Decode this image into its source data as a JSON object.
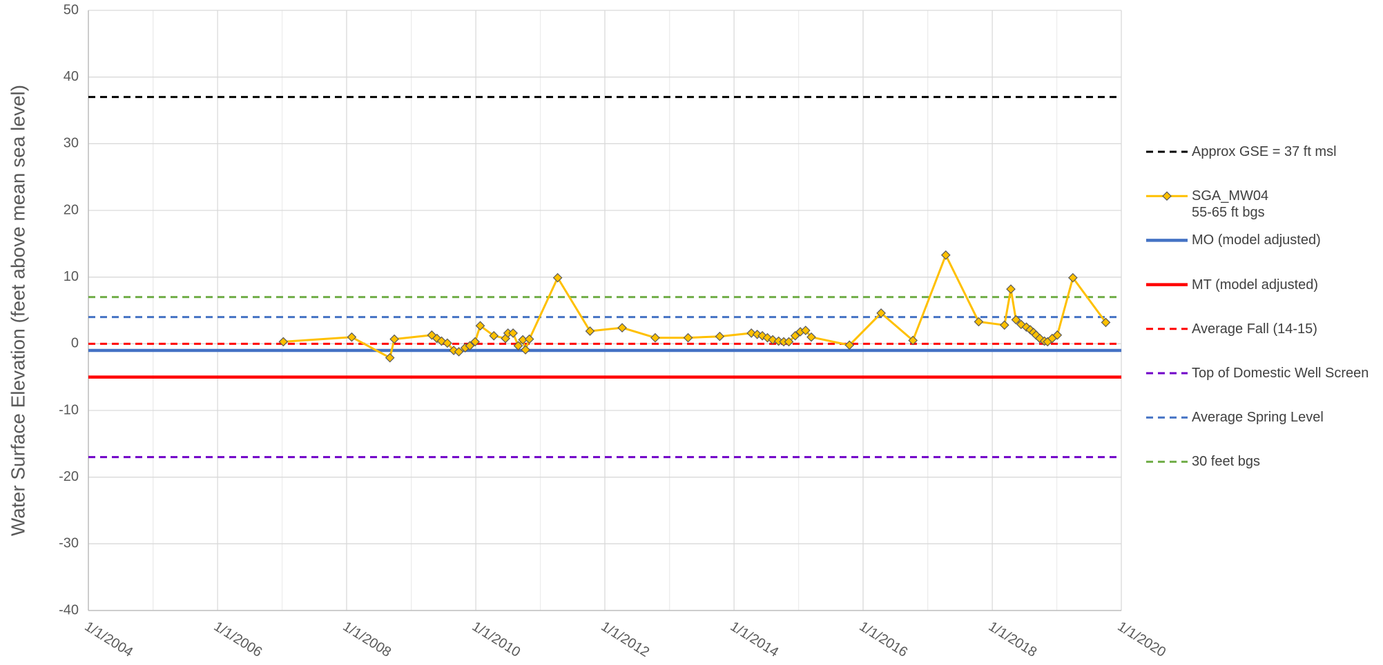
{
  "chart_data": {
    "type": "line",
    "y_label": "Water Surface Elevation (feet above mean sea level)",
    "xlim": [
      "2004-01-01",
      "2020-01-01"
    ],
    "xticks": [
      {
        "value": "2004-01-01",
        "label": "1/1/2004"
      },
      {
        "value": "2006-01-01",
        "label": "1/1/2006"
      },
      {
        "value": "2008-01-01",
        "label": "1/1/2008"
      },
      {
        "value": "2010-01-01",
        "label": "1/1/2010"
      },
      {
        "value": "2012-01-01",
        "label": "1/1/2012"
      },
      {
        "value": "2014-01-01",
        "label": "1/1/2014"
      },
      {
        "value": "2016-01-01",
        "label": "1/1/2016"
      },
      {
        "value": "2018-01-01",
        "label": "1/1/2018"
      },
      {
        "value": "2020-01-01",
        "label": "1/1/2020"
      }
    ],
    "xminorticks": [
      "2005-01-01",
      "2007-01-01",
      "2009-01-01",
      "2011-01-01",
      "2013-01-01",
      "2015-01-01",
      "2017-01-01",
      "2019-01-01"
    ],
    "ylim": [
      -40,
      50
    ],
    "yticks": [
      -40,
      -30,
      -20,
      -10,
      0,
      10,
      20,
      30,
      40,
      50
    ],
    "grid": true,
    "legend": "right",
    "x": [
      "2007-01-08",
      "2008-01-30",
      "2008-09-02",
      "2008-09-27",
      "2009-04-27",
      "2009-05-26",
      "2009-06-21",
      "2009-07-24",
      "2009-08-29",
      "2009-09-27",
      "2009-11-02",
      "2009-11-28",
      "2009-12-28",
      "2010-01-26",
      "2010-04-13",
      "2010-06-18",
      "2010-07-02",
      "2010-07-31",
      "2010-08-29",
      "2010-09-24",
      "2010-10-09",
      "2010-10-31",
      "2011-04-09",
      "2011-10-09",
      "2012-04-08",
      "2012-10-12",
      "2013-04-16",
      "2013-10-12",
      "2014-04-09",
      "2014-05-12",
      "2014-06-10",
      "2014-07-09",
      "2014-08-08",
      "2014-09-10",
      "2014-10-09",
      "2014-11-07",
      "2014-12-13",
      "2015-01-11",
      "2015-02-10",
      "2015-03-14",
      "2015-10-16",
      "2016-04-12",
      "2016-10-09",
      "2017-04-13",
      "2017-10-16",
      "2018-03-11",
      "2018-04-16",
      "2018-05-15",
      "2018-06-13",
      "2018-07-13",
      "2018-08-04",
      "2018-08-22",
      "2018-09-06",
      "2018-09-27",
      "2018-10-23",
      "2018-11-10",
      "2018-12-06",
      "2019-01-04",
      "2019-04-02",
      "2019-10-05"
    ],
    "series": [
      {
        "name": "Approx GSE = 37 ft msl",
        "color": "#000000",
        "dashed": true,
        "value": 37
      },
      {
        "name": "SGA_MW04\n 55-65 ft bgs",
        "color": "#ffc000",
        "marker": "diamond",
        "values": [
          0.3,
          1.0,
          -2.1,
          0.7,
          1.3,
          0.8,
          0.4,
          0.1,
          -1.0,
          -1.2,
          -0.6,
          -0.3,
          0.3,
          2.7,
          1.2,
          0.8,
          1.6,
          1.6,
          -0.3,
          0.6,
          -0.9,
          0.7,
          9.9,
          1.9,
          2.4,
          0.9,
          0.9,
          1.1,
          1.6,
          1.4,
          1.2,
          0.9,
          0.6,
          0.4,
          0.3,
          0.3,
          1.2,
          1.8,
          2.0,
          1.0,
          -0.2,
          4.6,
          0.5,
          13.3,
          3.3,
          2.8,
          8.2,
          3.6,
          2.9,
          2.5,
          2.1,
          1.7,
          1.3,
          0.8,
          0.4,
          0.3,
          0.8,
          1.3,
          9.9,
          3.2
        ]
      },
      {
        "name": "MO (model adjusted)",
        "color": "#4472c4",
        "dashed": false,
        "value": -1
      },
      {
        "name": "MT (model adjusted)",
        "color": "#ff0000",
        "dashed": false,
        "value": -5
      },
      {
        "name": "Average Fall (14-15)",
        "color": "#ff0000",
        "dashed": true,
        "value": 0
      },
      {
        "name": "Top of Domestic Well Screen",
        "color": "#7000c8",
        "dashed": true,
        "value": -17
      },
      {
        "name": "Average Spring Level",
        "color": "#4472c4",
        "dashed": true,
        "value": 4
      },
      {
        "name": "30 feet bgs",
        "color": "#70ad47",
        "dashed": true,
        "value": 7
      }
    ]
  }
}
